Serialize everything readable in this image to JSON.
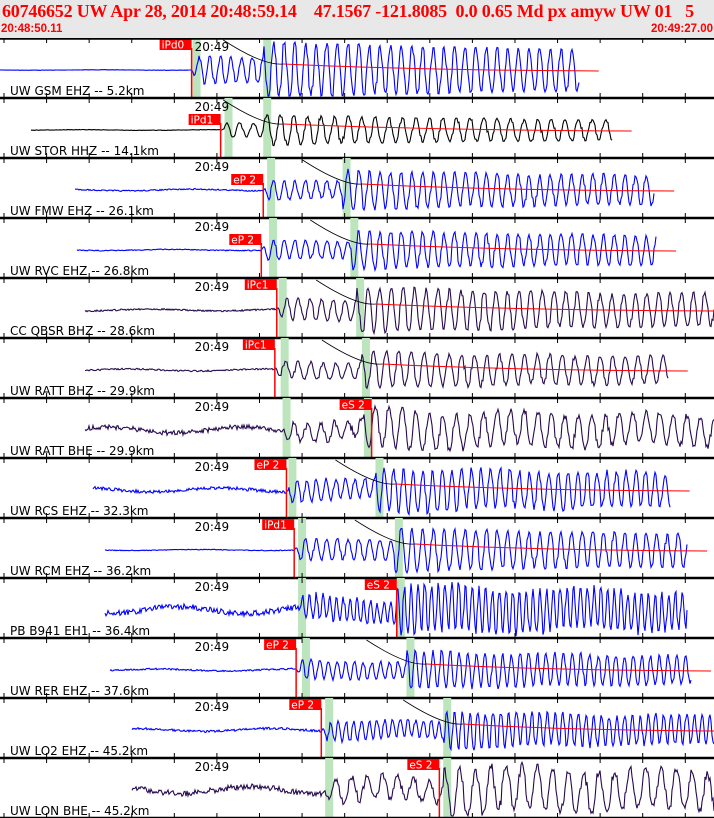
{
  "header": {
    "title": "60746652 UW Apr 28, 2014 20:48:59.14    47.1567 -121.8085  0.0 0.65 Md px amyw UW 01   5",
    "start_time": "20:48:50.11",
    "end_time": "20:49:27.00"
  },
  "colors": {
    "title": "#ff0000",
    "pick": "#ff0000",
    "band": "#bde5bd",
    "blue": "#0000ff",
    "black": "#000000",
    "purple": "#260a4e"
  },
  "chart_data": {
    "type": "line",
    "title": "60746652 UW Apr 28, 2014 20:48:59.14",
    "x_range_seconds": [
      0,
      36.89
    ],
    "x_tick_label": "20:49",
    "x_tick_label_seconds": 9.95,
    "tick_interval_seconds": 2.2,
    "traces": [
      {
        "label": "UW GSM EHZ -- 5.2km",
        "pick": "iPd0",
        "pick_s": 9.9,
        "p_band": 9.95,
        "s_band": 13.6,
        "start": 0,
        "end": 29.9,
        "color": "blue",
        "noise": 0.02,
        "amp": 1.0,
        "period": 0.55,
        "coda": true
      },
      {
        "label": "UW STOR HHZ -- 14.1km",
        "pick": "iPd1",
        "pick_s": 11.4,
        "p_band": 11.6,
        "s_band": 13.6,
        "start": 1.6,
        "end": 31.6,
        "color": "black",
        "noise": 0.03,
        "amp": 0.5,
        "period": 0.7,
        "coda": true
      },
      {
        "label": "UW FMW EHZ -- 26.1km",
        "pick": "eP 2",
        "pick_s": 13.6,
        "p_band": 13.8,
        "s_band": 17.7,
        "start": 3.9,
        "end": 33.8,
        "color": "blue",
        "noise": 0.08,
        "amp": 0.7,
        "period": 0.55,
        "coda": true
      },
      {
        "label": "UW RVC EHZ -- 26.8km",
        "pick": "eP 2",
        "pick_s": 13.5,
        "p_band": 13.9,
        "s_band": 18.1,
        "start": 4.0,
        "end": 33.9,
        "color": "blue",
        "noise": 0.06,
        "amp": 0.7,
        "period": 0.55,
        "coda": true
      },
      {
        "label": "CC QBSR BHZ -- 28.6km",
        "pick": "iPc1",
        "pick_s": 14.3,
        "p_band": 14.4,
        "s_band": 18.4,
        "start": 4.4,
        "end": 36.89,
        "color": "purple",
        "noise": 0.1,
        "amp": 0.8,
        "period": 0.6,
        "coda": true
      },
      {
        "label": "UW RATT BHZ -- 29.9km",
        "pick": "iPc1",
        "pick_s": 14.2,
        "p_band": 14.5,
        "s_band": 18.7,
        "start": 4.4,
        "end": 34.5,
        "color": "purple",
        "noise": 0.1,
        "amp": 0.65,
        "period": 0.65,
        "coda": true
      },
      {
        "label": "UW RATT BHE -- 29.9km",
        "pick": "eS 2",
        "pick_s": 19.2,
        "p_band": 14.6,
        "s_band": 18.8,
        "start": 4.4,
        "end": 36.89,
        "color": "purple",
        "noise": 0.3,
        "amp": 0.7,
        "period": 0.7,
        "coda": false
      },
      {
        "label": "UW RCS EHZ -- 32.3km",
        "pick": "eP 2",
        "pick_s": 14.8,
        "p_band": 14.9,
        "s_band": 19.4,
        "start": 4.8,
        "end": 34.6,
        "color": "blue",
        "noise": 0.2,
        "amp": 0.8,
        "period": 0.5,
        "coda": true
      },
      {
        "label": "UW RCM EHZ -- 36.2km",
        "pick": "iPd1",
        "pick_s": 15.2,
        "p_band": 15.4,
        "s_band": 20.4,
        "start": 5.4,
        "end": 35.5,
        "color": "blue",
        "noise": 0.05,
        "amp": 0.8,
        "period": 0.55,
        "coda": true
      },
      {
        "label": "PB B941 EH1 -- 36.4km",
        "pick": "eS 2",
        "pick_s": 20.5,
        "p_band": 15.4,
        "s_band": 20.5,
        "start": 5.4,
        "end": 35.5,
        "color": "blue",
        "noise": 0.35,
        "amp": 0.9,
        "period": 0.35,
        "coda": false
      },
      {
        "label": "UW RER EHZ -- 37.6km",
        "pick": "eP 2",
        "pick_s": 15.3,
        "p_band": 15.6,
        "s_band": 21.0,
        "start": 5.7,
        "end": 35.7,
        "color": "blue",
        "noise": 0.1,
        "amp": 0.7,
        "period": 0.45,
        "coda": true
      },
      {
        "label": "UW LO2 EHZ -- 45.2km",
        "pick": "eP 2",
        "pick_s": 16.6,
        "p_band": 16.8,
        "s_band": 22.9,
        "start": 6.8,
        "end": 36.89,
        "color": "blue",
        "noise": 0.15,
        "amp": 0.7,
        "period": 0.4,
        "coda": true
      },
      {
        "label": "UW LON BHE -- 45.2km",
        "pick": "eS 2",
        "pick_s": 22.7,
        "p_band": 16.8,
        "s_band": 22.9,
        "start": 6.8,
        "end": 36.89,
        "color": "purple",
        "noise": 0.35,
        "amp": 0.9,
        "period": 0.8,
        "coda": false
      }
    ]
  }
}
